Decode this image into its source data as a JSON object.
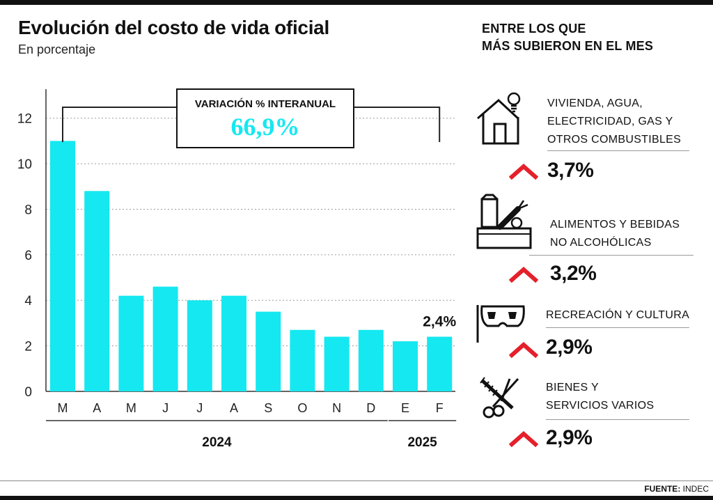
{
  "title": "Evolución del costo de vida oficial",
  "subtitle": "En porcentaje",
  "chart_data": {
    "type": "bar",
    "categories": [
      "M",
      "A",
      "M",
      "J",
      "J",
      "A",
      "S",
      "O",
      "N",
      "D",
      "E",
      "F"
    ],
    "values": [
      11.0,
      8.8,
      4.2,
      4.6,
      4.0,
      4.2,
      3.5,
      2.7,
      2.4,
      2.7,
      2.2,
      2.4
    ],
    "ylim": [
      0,
      13
    ],
    "yticks": [
      0,
      2,
      4,
      6,
      8,
      10,
      12
    ],
    "bar_color": "#15e8f0",
    "grid": "horizontal dotted",
    "last_value_label": "2,4%",
    "year_groups": [
      {
        "label": "2024",
        "from": 0,
        "to": 9
      },
      {
        "label": "2025",
        "from": 10,
        "to": 11
      }
    ],
    "annotation": {
      "label": "VARIACIÓN % INTERANUAL",
      "value": "66,9%",
      "value_color": "#15e8f0"
    }
  },
  "panel": {
    "title_line1": "ENTRE LOS QUE",
    "title_line2": "MÁS SUBIERON EN EL MES",
    "arrow_color": "#e5202a",
    "categories": [
      {
        "icon": "house-lightbulb-icon",
        "lines": [
          "VIVIENDA, AGUA,",
          "ELECTRICIDAD, GAS Y",
          "OTROS COMBUSTIBLES"
        ],
        "value": "3,7%"
      },
      {
        "icon": "grocery-basket-icon",
        "lines": [
          "ALIMENTOS Y BEBIDAS",
          "NO ALCOHÓLICAS"
        ],
        "value": "3,2%"
      },
      {
        "icon": "theater-mask-icon",
        "lines": [
          "RECREACIÓN Y CULTURA"
        ],
        "value": "2,9%"
      },
      {
        "icon": "comb-scissors-icon",
        "lines": [
          "BIENES Y",
          "SERVICIOS VARIOS"
        ],
        "value": "2,9%"
      }
    ]
  },
  "source": {
    "label": "FUENTE:",
    "value": "INDEC"
  }
}
